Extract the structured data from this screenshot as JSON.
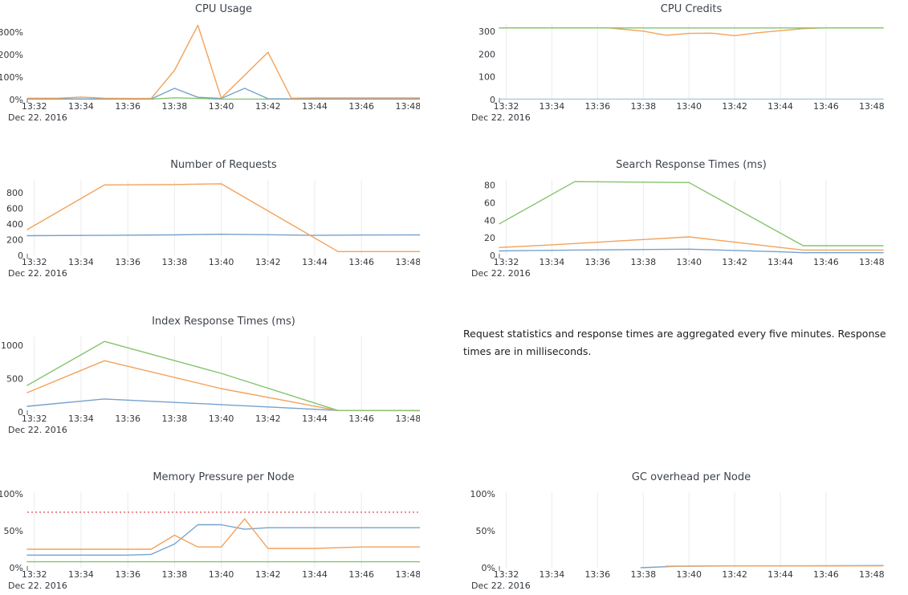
{
  "colors": {
    "series_blue": "#76a2cd",
    "series_orange": "#f3a25a",
    "series_green": "#85c46e",
    "threshold_red": "#e98c8c",
    "grid": "#e9ebec",
    "axis_text": "#33373c",
    "title_text": "#3d434b"
  },
  "note": {
    "text": "Request statistics and response times are aggregated every five minutes. Response times are in milliseconds."
  },
  "x_axis": {
    "unit": "time HH:MM, Dec 22 2016",
    "date_label": "Dec 22. 2016"
  },
  "chart_data": [
    {
      "id": "cpu-usage",
      "type": "line",
      "title": "CPU Usage",
      "column": "left",
      "row": 1,
      "grid": false,
      "ylim": [
        0,
        335
      ],
      "y_ticks": [
        {
          "v": 0,
          "label": "0%"
        },
        {
          "v": 100,
          "label": "100%"
        },
        {
          "v": 200,
          "label": "200%"
        },
        {
          "v": 300,
          "label": "300%"
        }
      ],
      "x_ticks": [
        "13:32",
        "13:34",
        "13:36",
        "13:38",
        "13:40",
        "13:42",
        "13:44",
        "13:46",
        "13:48"
      ],
      "date_label": "Dec 22. 2016",
      "series": [
        {
          "name": "green",
          "color": "#85c46e",
          "points": [
            [
              31.7,
              2
            ],
            [
              37,
              2
            ],
            [
              38,
              8
            ],
            [
              39,
              5
            ],
            [
              40,
              2
            ],
            [
              48.5,
              2
            ]
          ]
        },
        {
          "name": "blue",
          "color": "#76a2cd",
          "points": [
            [
              31.7,
              3
            ],
            [
              33,
              3
            ],
            [
              37,
              3
            ],
            [
              38,
              50
            ],
            [
              39,
              10
            ],
            [
              40,
              5
            ],
            [
              41,
              50
            ],
            [
              42,
              4
            ],
            [
              43,
              3
            ],
            [
              48.5,
              3
            ]
          ]
        },
        {
          "name": "orange",
          "color": "#f3a25a",
          "points": [
            [
              31.7,
              6
            ],
            [
              33,
              6
            ],
            [
              34,
              11
            ],
            [
              35,
              6
            ],
            [
              36,
              5
            ],
            [
              37,
              5
            ],
            [
              38,
              130
            ],
            [
              39,
              330
            ],
            [
              40,
              6
            ],
            [
              42,
              210
            ],
            [
              43,
              6
            ],
            [
              44,
              7
            ],
            [
              48.5,
              7
            ]
          ]
        }
      ]
    },
    {
      "id": "cpu-credits",
      "type": "line",
      "title": "CPU Credits",
      "column": "right",
      "row": 1,
      "grid": true,
      "ylim": [
        0,
        332
      ],
      "y_ticks": [
        {
          "v": 0,
          "label": "0"
        },
        {
          "v": 100,
          "label": "100"
        },
        {
          "v": 200,
          "label": "200"
        },
        {
          "v": 300,
          "label": "300"
        }
      ],
      "x_ticks": [
        "13:32",
        "13:34",
        "13:36",
        "13:38",
        "13:40",
        "13:42",
        "13:44",
        "13:46",
        "13:48"
      ],
      "date_label": "Dec 22. 2016",
      "series": [
        {
          "name": "blue",
          "color": "#a8cadd",
          "points": [
            [
              31.7,
              2
            ],
            [
              48.5,
              2
            ]
          ]
        },
        {
          "name": "orange",
          "color": "#f3a25a",
          "points": [
            [
              31.7,
              315
            ],
            [
              36.5,
              315
            ],
            [
              38,
              301
            ],
            [
              39,
              283
            ],
            [
              40,
              291
            ],
            [
              41,
              292
            ],
            [
              42,
              281
            ],
            [
              43,
              294
            ],
            [
              44,
              303
            ],
            [
              45,
              312
            ],
            [
              45.8,
              315
            ],
            [
              48.5,
              315
            ]
          ]
        },
        {
          "name": "green",
          "color": "#85c46e",
          "points": [
            [
              31.7,
              315
            ],
            [
              48.5,
              315
            ]
          ]
        }
      ]
    },
    {
      "id": "number-of-requests",
      "type": "line",
      "title": "Number of Requests",
      "column": "left",
      "row": 2,
      "grid": true,
      "ylim": [
        0,
        965
      ],
      "y_ticks": [
        {
          "v": 0,
          "label": "0"
        },
        {
          "v": 200,
          "label": "200"
        },
        {
          "v": 400,
          "label": "400"
        },
        {
          "v": 600,
          "label": "600"
        },
        {
          "v": 800,
          "label": "800"
        }
      ],
      "x_ticks": [
        "13:32",
        "13:34",
        "13:36",
        "13:38",
        "13:40",
        "13:42",
        "13:44",
        "13:46",
        "13:48"
      ],
      "date_label": "Dec 22. 2016",
      "series": [
        {
          "name": "blue",
          "color": "#76a2cd",
          "points": [
            [
              31.7,
              252
            ],
            [
              35,
              256
            ],
            [
              38,
              262
            ],
            [
              40,
              270
            ],
            [
              42,
              264
            ],
            [
              44,
              256
            ],
            [
              46,
              260
            ],
            [
              48.5,
              262
            ]
          ]
        },
        {
          "name": "orange",
          "color": "#f3a25a",
          "points": [
            [
              31.7,
              330
            ],
            [
              35,
              900
            ],
            [
              38,
              905
            ],
            [
              40,
              915
            ],
            [
              45,
              48
            ],
            [
              48.5,
              48
            ]
          ]
        }
      ]
    },
    {
      "id": "search-response-times",
      "type": "line",
      "title": "Search Response Times (ms)",
      "column": "right",
      "row": 2,
      "grid": true,
      "ylim": [
        0,
        86
      ],
      "y_ticks": [
        {
          "v": 0,
          "label": "0"
        },
        {
          "v": 20,
          "label": "20"
        },
        {
          "v": 40,
          "label": "40"
        },
        {
          "v": 60,
          "label": "60"
        },
        {
          "v": 80,
          "label": "80"
        }
      ],
      "x_ticks": [
        "13:32",
        "13:34",
        "13:36",
        "13:38",
        "13:40",
        "13:42",
        "13:44",
        "13:46",
        "13:48"
      ],
      "date_label": "Dec 22. 2016",
      "series": [
        {
          "name": "blue",
          "color": "#76a2cd",
          "points": [
            [
              31.7,
              5
            ],
            [
              35,
              6
            ],
            [
              40,
              7
            ],
            [
              44,
              4
            ],
            [
              45,
              3
            ],
            [
              48.5,
              3
            ]
          ]
        },
        {
          "name": "orange",
          "color": "#f3a25a",
          "points": [
            [
              31.7,
              9
            ],
            [
              34,
              12
            ],
            [
              38,
              18
            ],
            [
              40,
              21
            ],
            [
              42,
              15
            ],
            [
              44,
              9
            ],
            [
              45,
              6
            ],
            [
              48.5,
              6
            ]
          ]
        },
        {
          "name": "green",
          "color": "#85c46e",
          "points": [
            [
              31.7,
              36
            ],
            [
              35,
              84
            ],
            [
              40,
              83
            ],
            [
              45,
              11
            ],
            [
              48.5,
              11
            ]
          ]
        }
      ]
    },
    {
      "id": "index-response-times",
      "type": "line",
      "title": "Index Response Times (ms)",
      "column": "left",
      "row": 3,
      "grid": true,
      "ylim": [
        0,
        1135
      ],
      "y_ticks": [
        {
          "v": 0,
          "label": "0"
        },
        {
          "v": 500,
          "label": "500"
        },
        {
          "v": 1000,
          "label": "1000"
        }
      ],
      "x_ticks": [
        "13:32",
        "13:34",
        "13:36",
        "13:38",
        "13:40",
        "13:42",
        "13:44",
        "13:46",
        "13:48"
      ],
      "date_label": "Dec 22. 2016",
      "series": [
        {
          "name": "blue",
          "color": "#76a2cd",
          "points": [
            [
              31.7,
              85
            ],
            [
              35,
              195
            ],
            [
              40,
              110
            ],
            [
              44,
              40
            ],
            [
              45,
              22
            ],
            [
              48.5,
              20
            ]
          ]
        },
        {
          "name": "orange",
          "color": "#f3a25a",
          "points": [
            [
              31.7,
              290
            ],
            [
              35,
              770
            ],
            [
              40,
              350
            ],
            [
              45,
              20
            ],
            [
              48.5,
              18
            ]
          ]
        },
        {
          "name": "green",
          "color": "#85c46e",
          "points": [
            [
              31.7,
              400
            ],
            [
              35,
              1060
            ],
            [
              40,
              580
            ],
            [
              45,
              22
            ],
            [
              48.5,
              22
            ]
          ]
        }
      ]
    },
    {
      "id": "memory-pressure-per-node",
      "type": "line",
      "title": "Memory Pressure per Node",
      "column": "left",
      "row": 4,
      "grid": true,
      "ylim": [
        0,
        102
      ],
      "y_ticks": [
        {
          "v": 0,
          "label": "0%"
        },
        {
          "v": 50,
          "label": "50%"
        },
        {
          "v": 100,
          "label": "100%"
        }
      ],
      "x_ticks": [
        "13:32",
        "13:34",
        "13:36",
        "13:38",
        "13:40",
        "13:42",
        "13:44",
        "13:46",
        "13:48"
      ],
      "date_label": "Dec 22. 2016",
      "threshold": {
        "value": 75,
        "style": "dotted",
        "color": "#e98c8c"
      },
      "series": [
        {
          "name": "green",
          "color": "#85c46e",
          "points": [
            [
              31.7,
              8
            ],
            [
              48.5,
              8
            ]
          ]
        },
        {
          "name": "blue",
          "color": "#76a2cd",
          "points": [
            [
              31.7,
              17
            ],
            [
              36,
              17
            ],
            [
              37,
              18
            ],
            [
              38,
              32
            ],
            [
              39,
              58
            ],
            [
              40,
              58
            ],
            [
              41,
              52
            ],
            [
              42,
              54
            ],
            [
              48.5,
              54
            ]
          ]
        },
        {
          "name": "orange",
          "color": "#f3a25a",
          "points": [
            [
              31.7,
              25
            ],
            [
              37,
              25
            ],
            [
              38,
              44
            ],
            [
              39,
              28
            ],
            [
              40,
              28
            ],
            [
              41,
              66
            ],
            [
              42,
              26
            ],
            [
              44,
              26
            ],
            [
              46,
              28
            ],
            [
              48.5,
              28
            ]
          ]
        }
      ]
    },
    {
      "id": "gc-overhead-per-node",
      "type": "line",
      "title": "GC overhead per Node",
      "column": "right",
      "row": 4,
      "grid": true,
      "ylim": [
        0,
        102
      ],
      "y_ticks": [
        {
          "v": 0,
          "label": "0%"
        },
        {
          "v": 50,
          "label": "50%"
        },
        {
          "v": 100,
          "label": "100%"
        }
      ],
      "x_ticks": [
        "13:32",
        "13:34",
        "13:36",
        "13:38",
        "13:40",
        "13:42",
        "13:44",
        "13:46",
        "13:48"
      ],
      "date_label": "Dec 22. 2016",
      "series": [
        {
          "name": "blue",
          "color": "#76a2cd",
          "points": [
            [
              37.9,
              0
            ],
            [
              39.5,
              2
            ],
            [
              42,
              2.4
            ],
            [
              48.5,
              2.9
            ]
          ]
        },
        {
          "name": "orange",
          "color": "#f3a25a",
          "points": [
            [
              39,
              2.1
            ],
            [
              41,
              2.4
            ],
            [
              48.5,
              2.5
            ]
          ]
        }
      ]
    }
  ]
}
